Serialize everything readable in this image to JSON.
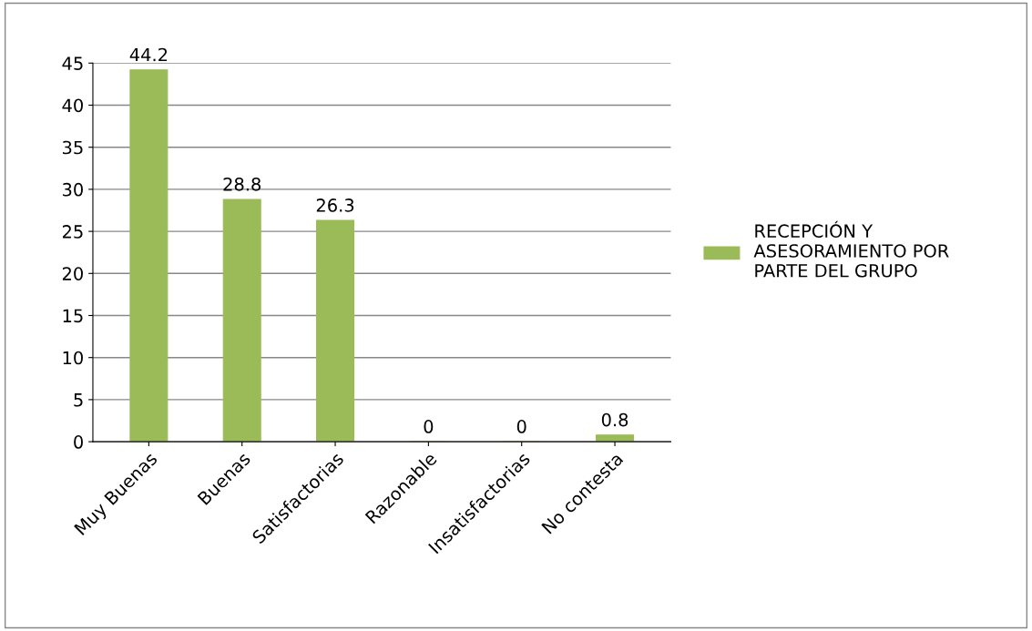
{
  "chart_data": {
    "type": "bar",
    "categories": [
      "Muy Buenas",
      "Buenas",
      "Satisfactorias",
      "Razonable",
      "Insatisfactorias",
      "No contesta"
    ],
    "series": [
      {
        "name": "RECEPCIÓN Y ASESORAMIENTO POR PARTE DEL GRUPO",
        "color": "#9bbb59",
        "values": [
          44.2,
          28.8,
          26.3,
          0,
          0,
          0.8
        ]
      }
    ],
    "ylim": [
      0,
      45
    ],
    "yticks": [
      0,
      5,
      10,
      15,
      20,
      25,
      30,
      35,
      40,
      45
    ],
    "grid": "y",
    "legend": "right",
    "data_labels": true
  }
}
